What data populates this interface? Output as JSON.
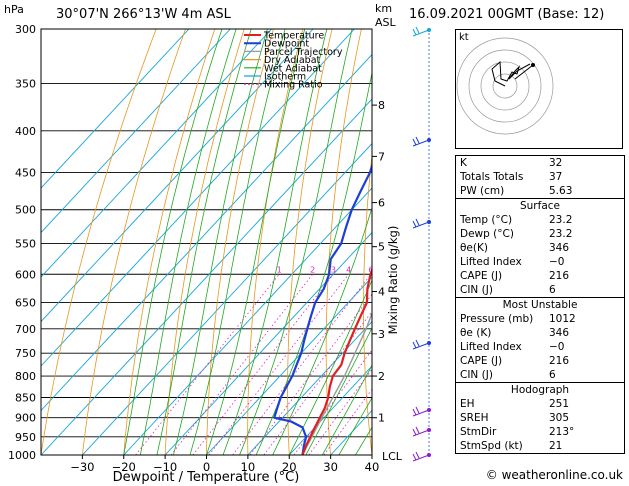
{
  "header": {
    "left_unit": "hPa",
    "location": "30°07'N  266°13'W  4m  ASL",
    "km_label": "km",
    "asl_label": "ASL",
    "datetime": "16.09.2021  00GMT  (Base: 12)"
  },
  "chart_data": {
    "type": "skew-t",
    "title": "30°07'N  266°13'W  4m  ASL",
    "xlabel": "Dewpoint / Temperature (°C)",
    "ylabel_right": "Mixing Ratio (g/kg)",
    "pressure_levels": [
      300,
      350,
      400,
      450,
      500,
      550,
      600,
      650,
      700,
      750,
      800,
      850,
      900,
      950,
      1000
    ],
    "pressure_labels": [
      "300",
      "350",
      "400",
      "450",
      "500",
      "550",
      "600",
      "650",
      "700",
      "750",
      "800",
      "850",
      "900",
      "950",
      "1000"
    ],
    "temp_ticks": [
      -30,
      -20,
      -10,
      0,
      10,
      20,
      30,
      40
    ],
    "temp_tick_labels": [
      "−30",
      "−20",
      "−10",
      "0",
      "10",
      "20",
      "30",
      "40"
    ],
    "xlim": [
      -40,
      40
    ],
    "ylim_hpa": [
      1000,
      300
    ],
    "km_ticks": [
      {
        "km": 1,
        "p": 900
      },
      {
        "km": 2,
        "p": 800
      },
      {
        "km": 3,
        "p": 710
      },
      {
        "km": 4,
        "p": 630
      },
      {
        "km": 5,
        "p": 555
      },
      {
        "km": 6,
        "p": 490
      },
      {
        "km": 7,
        "p": 430
      },
      {
        "km": 8,
        "p": 372
      }
    ],
    "km_labels": [
      "1",
      "2",
      "3",
      "4",
      "5",
      "6",
      "7",
      "8"
    ],
    "lcl_label": "LCL",
    "mixing_ratio_values": [
      1,
      2,
      3,
      4,
      6,
      8,
      10,
      16,
      20,
      25
    ],
    "mixing_ratio_labels": [
      "1",
      "2",
      "3",
      "4",
      "6",
      "8",
      "10",
      "16",
      "20",
      "25"
    ],
    "legend": [
      {
        "name": "Temperature",
        "color": "#e02020"
      },
      {
        "name": "Dewpoint",
        "color": "#1c3fd8"
      },
      {
        "name": "Parcel Trajectory",
        "color": "#9a9a9a"
      },
      {
        "name": "Dry Adiabat",
        "color": "#e8961e"
      },
      {
        "name": "Wet Adiabat",
        "color": "#1fa81f"
      },
      {
        "name": "Isotherm",
        "color": "#17a5dc"
      },
      {
        "name": "Mixing Ratio",
        "color": "#e020c0"
      }
    ],
    "series": [
      {
        "name": "Temperature",
        "points": [
          [
            1000,
            23.2
          ],
          [
            975,
            22
          ],
          [
            950,
            21
          ],
          [
            925,
            20
          ],
          [
            900,
            19
          ],
          [
            875,
            18
          ],
          [
            850,
            16.5
          ],
          [
            825,
            14.5
          ],
          [
            800,
            12.8
          ],
          [
            775,
            12.3
          ],
          [
            750,
            10.5
          ],
          [
            725,
            9
          ],
          [
            700,
            7.5
          ],
          [
            675,
            6
          ],
          [
            650,
            4.5
          ],
          [
            625,
            1.5
          ],
          [
            600,
            -1
          ],
          [
            575,
            -3
          ],
          [
            550,
            -5.5
          ],
          [
            525,
            -8
          ],
          [
            500,
            -10.5
          ],
          [
            475,
            -13
          ],
          [
            450,
            -16
          ],
          [
            425,
            -19.5
          ],
          [
            400,
            -23
          ],
          [
            375,
            -27
          ],
          [
            350,
            -31.5
          ]
        ]
      },
      {
        "name": "Dewpoint",
        "points": [
          [
            1000,
            23.2
          ],
          [
            975,
            21.5
          ],
          [
            950,
            20
          ],
          [
            925,
            17
          ],
          [
            910,
            13
          ],
          [
            900,
            8
          ],
          [
            875,
            6.5
          ],
          [
            850,
            5
          ],
          [
            825,
            4
          ],
          [
            800,
            3
          ],
          [
            775,
            1.5
          ],
          [
            750,
            0
          ],
          [
            725,
            -2
          ],
          [
            700,
            -4
          ],
          [
            675,
            -6
          ],
          [
            650,
            -8
          ],
          [
            625,
            -9
          ],
          [
            600,
            -11
          ],
          [
            575,
            -14
          ],
          [
            550,
            -15
          ],
          [
            525,
            -17.5
          ],
          [
            500,
            -20
          ],
          [
            475,
            -22
          ],
          [
            450,
            -24
          ],
          [
            425,
            -27
          ],
          [
            400,
            -31
          ],
          [
            375,
            -35
          ],
          [
            350,
            -39
          ]
        ]
      },
      {
        "name": "Parcel Trajectory",
        "points": [
          [
            1000,
            23.2
          ],
          [
            900,
            19.5
          ],
          [
            800,
            15.6
          ],
          [
            700,
            10.2
          ],
          [
            600,
            3
          ],
          [
            500,
            -6.5
          ],
          [
            400,
            -19.5
          ],
          [
            300,
            -38
          ]
        ]
      }
    ]
  },
  "hodograph": {
    "label": "kt"
  },
  "indices": {
    "k_label": "K",
    "k_value": "32",
    "tt_label": "Totals Totals",
    "tt_value": "37",
    "pw_label": "PW (cm)",
    "pw_value": "5.63",
    "surface_title": "Surface",
    "s_temp_label": "Temp (°C)",
    "s_temp_value": "23.2",
    "s_dewp_label": "Dewp (°C)",
    "s_dewp_value": "23.2",
    "s_theta_label": "θe(K)",
    "s_theta_value": "346",
    "s_li_label": "Lifted Index",
    "s_li_value": "−0",
    "s_cape_label": "CAPE (J)",
    "s_cape_value": "216",
    "s_cin_label": "CIN (J)",
    "s_cin_value": "6",
    "mu_title": "Most Unstable",
    "mu_pres_label": "Pressure (mb)",
    "mu_pres_value": "1012",
    "mu_theta_label": "θe (K)",
    "mu_theta_value": "346",
    "mu_li_label": "Lifted Index",
    "mu_li_value": "−0",
    "mu_cape_label": "CAPE (J)",
    "mu_cape_value": "216",
    "mu_cin_label": "CIN (J)",
    "mu_cin_value": "6",
    "hodo_title": "Hodograph",
    "eh_label": "EH",
    "eh_value": "251",
    "sreh_label": "SREH",
    "sreh_value": "305",
    "stmdir_label": "StmDir",
    "stmdir_value": "213°",
    "stmspd_label": "StmSpd (kt)",
    "stmspd_value": "21"
  },
  "footer": {
    "credit": "© weatheronline.co.uk"
  }
}
